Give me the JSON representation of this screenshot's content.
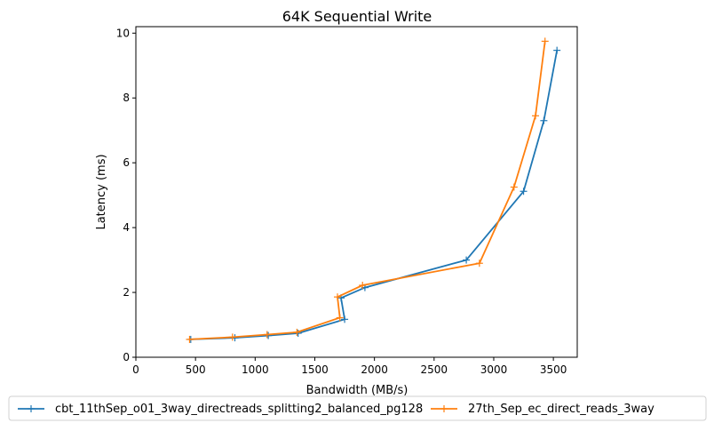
{
  "chart_data": {
    "type": "line",
    "title": "64K  Sequential Write",
    "xlabel": "Bandwidth (MB/s)",
    "ylabel": "Latency (ms)",
    "xlim": [
      0,
      3700
    ],
    "ylim": [
      0,
      10.2
    ],
    "xticks": [
      "0",
      "500",
      "1000",
      "1500",
      "2000",
      "2500",
      "3000",
      "3500"
    ],
    "yticks": [
      "0",
      "2",
      "4",
      "6",
      "8",
      "10"
    ],
    "grid": false,
    "legend_position": "bottom-center",
    "marker": "+",
    "series": [
      {
        "name": "cbt_11thSep_o01_3way_directreads_splitting2_balanced_pg128",
        "color": "#1f77b4",
        "x": [
          460,
          830,
          1110,
          1360,
          1750,
          1720,
          1920,
          2770,
          3250,
          3420,
          3530
        ],
        "y": [
          0.55,
          0.6,
          0.67,
          0.74,
          1.17,
          1.83,
          2.15,
          3.0,
          5.12,
          7.3,
          9.47
        ]
      },
      {
        "name": "27th_Sep_ec_direct_reads_3way",
        "color": "#ff7f0e",
        "x": [
          450,
          810,
          1100,
          1350,
          1710,
          1690,
          1900,
          2880,
          3170,
          3350,
          3430
        ],
        "y": [
          0.55,
          0.62,
          0.7,
          0.77,
          1.22,
          1.86,
          2.22,
          2.9,
          5.25,
          7.45,
          9.75
        ]
      }
    ]
  }
}
